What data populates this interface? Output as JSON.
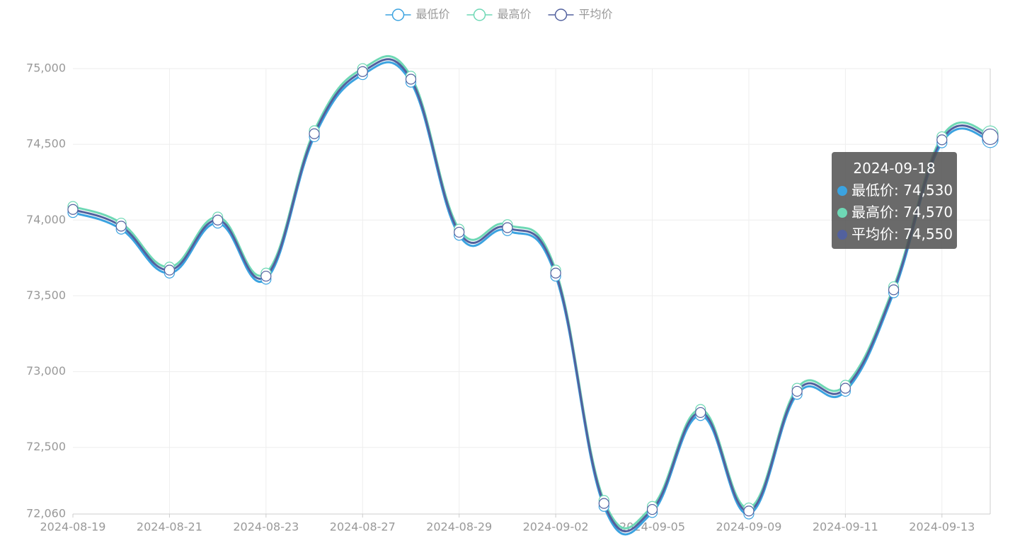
{
  "chart_data": {
    "type": "line",
    "categories": [
      "2024-08-19",
      null,
      "2024-08-21",
      null,
      "2024-08-23",
      null,
      "2024-08-27",
      null,
      "2024-08-29",
      null,
      "2024-09-02",
      null,
      "2024-09-05",
      null,
      "2024-09-09",
      null,
      "2024-09-11",
      null,
      "2024-09-13",
      "2024-09-18"
    ],
    "series": [
      {
        "name": "最低价",
        "color": "#3ba3e0",
        "values": [
          74050,
          73940,
          73650,
          73980,
          73610,
          74550,
          74960,
          74910,
          73900,
          73930,
          73630,
          72110,
          72070,
          72710,
          72060,
          72850,
          72870,
          73520,
          74510,
          74530
        ],
        "value_labels": [
          null,
          null,
          null,
          null,
          null,
          null,
          null,
          null,
          null,
          null,
          null,
          null,
          null,
          null,
          null,
          null,
          null,
          null,
          null,
          "74,530"
        ]
      },
      {
        "name": "最高价",
        "color": "#6ed8b5",
        "values": [
          74090,
          73980,
          73690,
          74020,
          73650,
          74590,
          75000,
          74950,
          73940,
          73970,
          73670,
          72150,
          72110,
          72750,
          72100,
          72890,
          72910,
          73560,
          74550,
          74570
        ],
        "value_labels": [
          null,
          null,
          null,
          null,
          null,
          null,
          null,
          null,
          null,
          null,
          null,
          null,
          null,
          null,
          null,
          null,
          null,
          null,
          null,
          "74,570"
        ]
      },
      {
        "name": "平均价",
        "color": "#52619e",
        "values": [
          74070,
          73960,
          73670,
          74000,
          73630,
          74570,
          74980,
          74930,
          73920,
          73950,
          73650,
          72130,
          72090,
          72730,
          72080,
          72870,
          72890,
          73540,
          74530,
          74550
        ],
        "value_labels": [
          null,
          null,
          null,
          null,
          null,
          null,
          null,
          null,
          null,
          null,
          null,
          null,
          null,
          null,
          null,
          null,
          null,
          null,
          null,
          "74,550"
        ]
      }
    ],
    "ylim": [
      72060,
      75000
    ],
    "yticks": [
      {
        "value": 72060,
        "label": "72,060"
      },
      {
        "value": 72500,
        "label": "72,500"
      },
      {
        "value": 73000,
        "label": "73,000"
      },
      {
        "value": 73500,
        "label": "73,500"
      },
      {
        "value": 74000,
        "label": "74,000"
      },
      {
        "value": 74500,
        "label": "74,500"
      },
      {
        "value": 75000,
        "label": "75,000"
      }
    ],
    "grid": true,
    "legend": "top",
    "smooth": true,
    "tooltip_index": 19
  }
}
